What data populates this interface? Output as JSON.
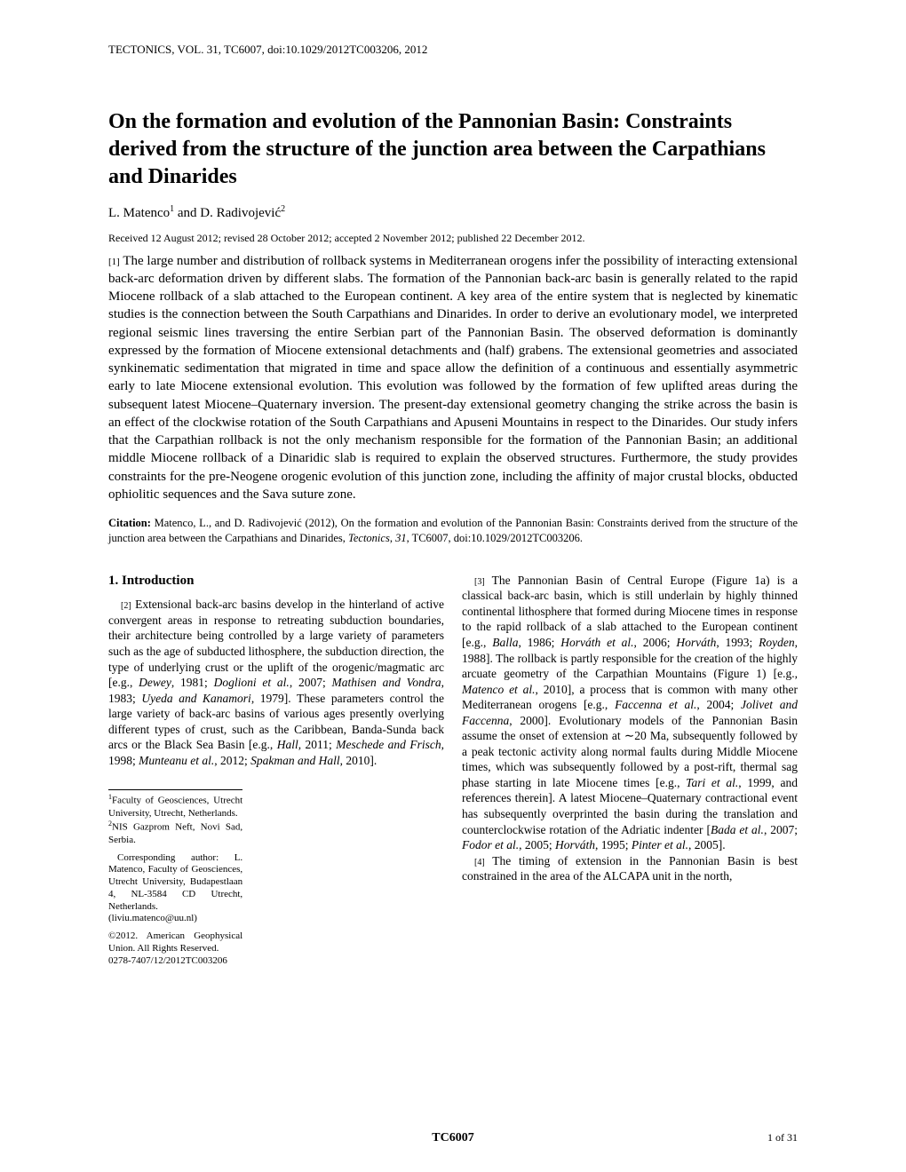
{
  "header": "TECTONICS, VOL. 31, TC6007, doi:10.1029/2012TC003206, 2012",
  "title": "On the formation and evolution of the Pannonian Basin: Constraints derived from the structure of the junction area between the Carpathians and Dinarides",
  "authors_html": "L. Matenco<sup>1</sup> and D. Radivojević<sup>2</sup>",
  "dates": "Received 12 August 2012; revised 28 October 2012; accepted 2 November 2012; published 22 December 2012.",
  "abstract_num": "[1]",
  "abstract": "The large number and distribution of rollback systems in Mediterranean orogens infer the possibility of interacting extensional back-arc deformation driven by different slabs. The formation of the Pannonian back-arc basin is generally related to the rapid Miocene rollback of a slab attached to the European continent. A key area of the entire system that is neglected by kinematic studies is the connection between the South Carpathians and Dinarides. In order to derive an evolutionary model, we interpreted regional seismic lines traversing the entire Serbian part of the Pannonian Basin. The observed deformation is dominantly expressed by the formation of Miocene extensional detachments and (half) grabens. The extensional geometries and associated synkinematic sedimentation that migrated in time and space allow the definition of a continuous and essentially asymmetric early to late Miocene extensional evolution. This evolution was followed by the formation of few uplifted areas during the subsequent latest Miocene–Quaternary inversion. The present-day extensional geometry changing the strike across the basin is an effect of the clockwise rotation of the South Carpathians and Apuseni Mountains in respect to the Dinarides. Our study infers that the Carpathian rollback is not the only mechanism responsible for the formation of the Pannonian Basin; an additional middle Miocene rollback of a Dinaridic slab is required to explain the observed structures. Furthermore, the study provides constraints for the pre-Neogene orogenic evolution of this junction zone, including the affinity of major crustal blocks, obducted ophiolitic sequences and the Sava suture zone.",
  "citation_label": "Citation:",
  "citation_html": "Matenco, L., and D. Radivojević (2012), On the formation and evolution of the Pannonian Basin: Constraints derived from the structure of the junction area between the Carpathians and Dinarides, <span class=\"italic\">Tectonics</span>, <span class=\"italic\">31</span>, TC6007, doi:10.1029/2012TC003206.",
  "section_heading": "1.   Introduction",
  "col1_p1_num": "[2]",
  "col1_p1_html": "Extensional back-arc basins develop in the hinterland of active convergent areas in response to retreating subduction boundaries, their architecture being controlled by a large variety of parameters such as the age of subducted lithosphere, the subduction direction, the type of underlying crust or the uplift of the orogenic/magmatic arc [e.g., <span class=\"italic\">Dewey</span>, 1981; <span class=\"italic\">Doglioni et al.</span>, 2007; <span class=\"italic\">Mathisen and Vondra</span>, 1983; <span class=\"italic\">Uyeda and Kanamori</span>, 1979]. These parameters control the large variety of back-arc basins of various ages presently overlying different types of crust, such as the Caribbean, Banda-Sunda back arcs or the Black Sea Basin [e.g., <span class=\"italic\">Hall</span>, 2011; <span class=\"italic\">Meschede and Frisch</span>, 1998; <span class=\"italic\">Munteanu et al.</span>, 2012; <span class=\"italic\">Spakman and Hall</span>, 2010].",
  "col2_p1_num": "[3]",
  "col2_p1_html": "The Pannonian Basin of Central Europe (Figure 1a) is a classical back-arc basin, which is still underlain by highly thinned continental lithosphere that formed during Miocene times in response to the rapid rollback of a slab attached to the European continent [e.g., <span class=\"italic\">Balla</span>, 1986; <span class=\"italic\">Horváth et al.</span>, 2006; <span class=\"italic\">Horváth</span>, 1993; <span class=\"italic\">Royden</span>, 1988]. The rollback is partly responsible for the creation of the highly arcuate geometry of the Carpathian Mountains (Figure 1) [e.g., <span class=\"italic\">Matenco et al.</span>, 2010], a process that is common with many other Mediterranean orogens [e.g., <span class=\"italic\">Faccenna et al.</span>, 2004; <span class=\"italic\">Jolivet and Faccenna</span>, 2000]. Evolutionary models of the Pannonian Basin assume the onset of extension at ∼20 Ma, subsequently followed by a peak tectonic activity along normal faults during Middle Miocene times, which was subsequently followed by a post-rift, thermal sag phase starting in late Miocene times [e.g., <span class=\"italic\">Tari et al.</span>, 1999, and references therein]. A latest Miocene–Quaternary contractional event has subsequently overprinted the basin during the translation and counterclockwise rotation of the Adriatic indenter [<span class=\"italic\">Bada et al.</span>, 2007; <span class=\"italic\">Fodor et al.</span>, 2005; <span class=\"italic\">Horváth</span>, 1995; <span class=\"italic\">Pinter et al.</span>, 2005].",
  "col2_p2_num": "[4]",
  "col2_p2_html": "The timing of extension in the Pannonian Basin is best constrained in the area of the ALCAPA unit in the north,",
  "footnote1_html": "<sup>1</sup>Faculty of Geosciences, Utrecht University, Utrecht, Netherlands.",
  "footnote2_html": "<sup>2</sup>NIS Gazprom Neft, Novi Sad, Serbia.",
  "footnote3": "Corresponding author: L. Matenco, Faculty of Geosciences, Utrecht University, Budapestlaan 4, NL-3584 CD Utrecht, Netherlands. (liviu.matenco@uu.nl)",
  "footnote4": "©2012. American Geophysical Union. All Rights Reserved.",
  "footnote5": "0278-7407/12/2012TC003206",
  "footer_id": "TC6007",
  "footer_page": "1 of 31"
}
